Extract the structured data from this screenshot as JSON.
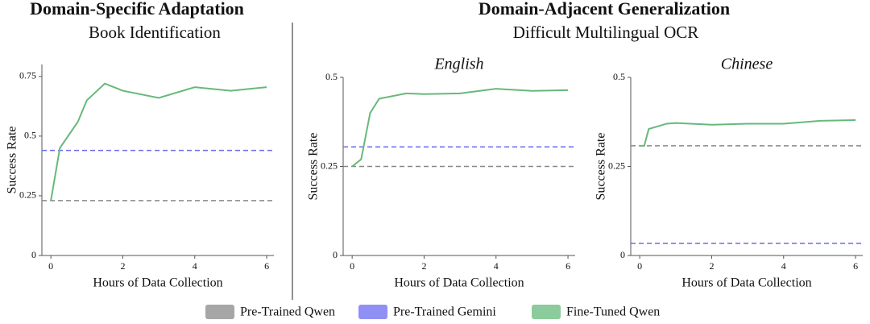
{
  "sections": [
    {
      "title": "Domain-Specific Adaptation",
      "subtitle": "Book Identification"
    },
    {
      "title": "Domain-Adjacent Generalization",
      "subtitle": "Difficult Multilingual OCR"
    }
  ],
  "chart_data": [
    {
      "type": "line",
      "xlabel": "Hours of Data Collection",
      "ylabel": "Success Rate",
      "xlim": [
        -0.25,
        6.2
      ],
      "ylim": [
        0,
        0.8
      ],
      "xticks": [
        0,
        2,
        4,
        6
      ],
      "yticks": [
        0,
        0.25,
        0.5,
        0.75
      ],
      "baselines": [
        {
          "name": "Pre-Trained Qwen",
          "color": "#888888",
          "value": 0.23
        },
        {
          "name": "Pre-Trained Gemini",
          "color": "#6b6bf0",
          "value": 0.44
        }
      ],
      "x": [
        0,
        0.25,
        0.75,
        1,
        1.5,
        2,
        3,
        4,
        5,
        6
      ],
      "series": [
        {
          "name": "Fine-Tuned Qwen",
          "color": "#66b97a",
          "values": [
            0.23,
            0.45,
            0.56,
            0.65,
            0.72,
            0.69,
            0.66,
            0.705,
            0.69,
            0.705
          ]
        }
      ]
    },
    {
      "type": "line",
      "title": "English",
      "xlabel": "Hours of Data Collection",
      "ylabel": "Success Rate",
      "xlim": [
        -0.25,
        6.2
      ],
      "ylim": [
        0,
        0.5
      ],
      "xticks": [
        0,
        2,
        4,
        6
      ],
      "yticks": [
        0,
        0.25,
        0.5
      ],
      "baselines": [
        {
          "name": "Pre-Trained Qwen",
          "color": "#888888",
          "value": 0.25
        },
        {
          "name": "Pre-Trained Gemini",
          "color": "#6b6bf0",
          "value": 0.305
        }
      ],
      "x": [
        0,
        0.25,
        0.5,
        0.75,
        1.5,
        2,
        3,
        4,
        5,
        6
      ],
      "series": [
        {
          "name": "Fine-Tuned Qwen",
          "color": "#66b97a",
          "values": [
            0.25,
            0.27,
            0.4,
            0.44,
            0.455,
            0.453,
            0.455,
            0.468,
            0.462,
            0.464
          ]
        }
      ]
    },
    {
      "type": "line",
      "title": "Chinese",
      "xlabel": "Hours of Data Collection",
      "ylabel": "Success Rate",
      "xlim": [
        -0.25,
        6.2
      ],
      "ylim": [
        0,
        0.5
      ],
      "xticks": [
        0,
        2,
        4,
        6
      ],
      "yticks": [
        0,
        0.25,
        0.5
      ],
      "baselines": [
        {
          "name": "Pre-Trained Qwen",
          "color": "#888888",
          "value": 0.308
        },
        {
          "name": "Pre-Trained Gemini",
          "color": "#6b6bf0",
          "value": 0.034
        }
      ],
      "x": [
        0,
        0.125,
        0.25,
        0.75,
        1,
        2,
        3,
        4,
        5,
        6
      ],
      "series": [
        {
          "name": "Fine-Tuned Qwen",
          "color": "#66b97a",
          "values": [
            0.308,
            0.308,
            0.355,
            0.37,
            0.372,
            0.367,
            0.37,
            0.37,
            0.378,
            0.38
          ]
        }
      ]
    }
  ]
}
